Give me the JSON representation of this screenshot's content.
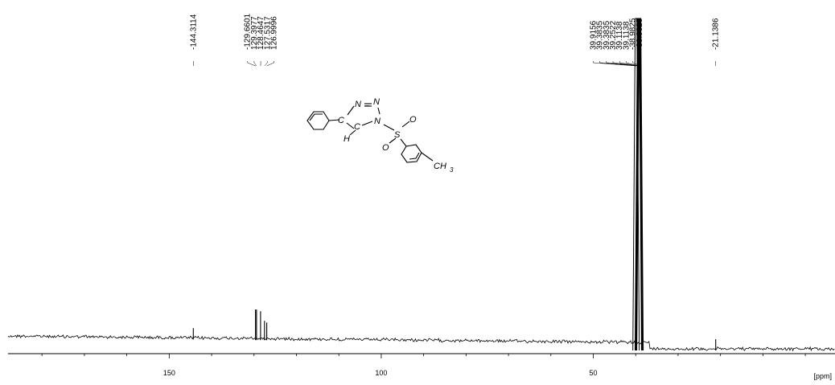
{
  "chart_data": {
    "type": "line",
    "title": "",
    "xlabel": "[ppm]",
    "ylabel": "",
    "xlim": [
      188,
      -7
    ],
    "x_ticks": [
      150,
      100,
      50
    ],
    "x_tick_labels": [
      "150",
      "100",
      "50"
    ],
    "grid": false,
    "legend": "none",
    "peaks": [
      {
        "ppm": 144.3114,
        "label": "-144.3114",
        "height": 0.03,
        "group": "a"
      },
      {
        "ppm": 129.6601,
        "label": "-129.6601",
        "height": 0.09,
        "group": "b"
      },
      {
        "ppm": 129.3977,
        "label": "129.3977",
        "height": 0.09,
        "group": "b"
      },
      {
        "ppm": 128.4647,
        "label": "128.4647",
        "height": 0.085,
        "group": "b"
      },
      {
        "ppm": 127.5317,
        "label": "127.5317",
        "height": 0.055,
        "group": "b"
      },
      {
        "ppm": 126.9996,
        "label": "126.9996",
        "height": 0.05,
        "group": "b"
      },
      {
        "ppm": 39.9156,
        "label": "39.9156",
        "height": 1.0,
        "group": "c"
      },
      {
        "ppm": 39.3835,
        "label": "39.3835",
        "height": 1.0,
        "group": "c"
      },
      {
        "ppm": 39.3835,
        "label": "39.3835",
        "height": 1.0,
        "group": "c"
      },
      {
        "ppm": 39.2522,
        "label": "39.2522",
        "height": 1.0,
        "group": "c"
      },
      {
        "ppm": 39.1138,
        "label": "39.1138",
        "height": 1.0,
        "group": "c"
      },
      {
        "ppm": 39.1138,
        "label": "39.1138",
        "height": 1.0,
        "group": "c"
      },
      {
        "ppm": 38.9825,
        "label": "-38.9825",
        "height": 1.0,
        "group": "c"
      },
      {
        "ppm": 38.9825,
        "label": "-38.9825",
        "height": 1.0,
        "group": "c"
      },
      {
        "ppm": 21.1386,
        "label": "-21.1386",
        "height": 0.03,
        "group": "d"
      }
    ]
  },
  "structure": {
    "labels": [
      "N",
      "=",
      "N",
      "C",
      "C",
      "N",
      "H",
      "S",
      "O",
      "O",
      "CH",
      "3"
    ]
  },
  "colors": {
    "line": "#000000",
    "background": "#ffffff"
  }
}
